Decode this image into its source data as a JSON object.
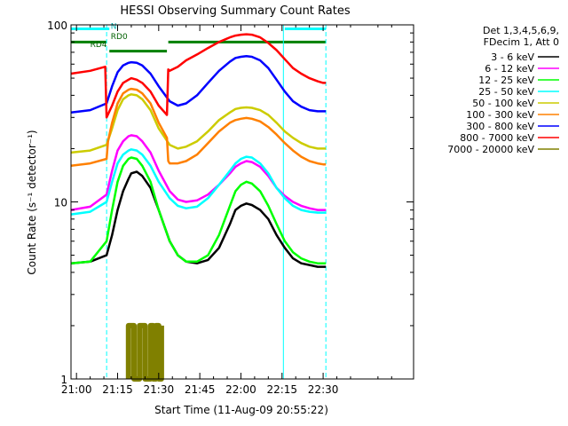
{
  "chart_data": {
    "type": "line",
    "title": "HESSI Observing Summary Count Rates",
    "xlabel": "Start Time (11-Aug-09 20:55:22)",
    "ylabel": "Count Rate (s⁻¹ detector⁻¹)",
    "x_range_minutes": [
      -2,
      123
    ],
    "yscale": "log",
    "ylim": [
      1,
      100
    ],
    "x_ticks": [
      {
        "t": 0,
        "label": "21:00"
      },
      {
        "t": 15,
        "label": "21:15"
      },
      {
        "t": 30,
        "label": "21:30"
      },
      {
        "t": 45,
        "label": "21:45"
      },
      {
        "t": 60,
        "label": "22:00"
      },
      {
        "t": 75,
        "label": "22:15"
      },
      {
        "t": 90,
        "label": "22:30"
      }
    ],
    "y_major_ticks": [
      {
        "v": 1,
        "label": "1"
      },
      {
        "v": 10,
        "label": "10"
      },
      {
        "v": 100,
        "label": "100"
      }
    ],
    "legend_position": "right",
    "legend_header": [
      "Det 1,3,4,5,6,9,",
      "FDecim 1, Att 0"
    ],
    "series": [
      {
        "name": "3 - 6 keV",
        "color": "#000000",
        "x": [
          -2,
          5,
          11,
          13,
          15,
          17,
          19,
          20,
          22,
          24,
          27,
          30,
          34,
          37,
          40,
          44,
          48,
          52,
          56,
          58,
          60,
          62,
          64,
          67,
          70,
          73,
          76,
          79,
          82,
          85,
          88,
          90,
          91
        ],
        "y": [
          4.5,
          4.6,
          5.0,
          6.5,
          9.0,
          11.5,
          13.5,
          14.5,
          14.8,
          14.0,
          12.0,
          9.0,
          6.0,
          5.0,
          4.6,
          4.5,
          4.7,
          5.5,
          7.5,
          9.0,
          9.5,
          9.8,
          9.6,
          9.0,
          8.0,
          6.5,
          5.5,
          4.8,
          4.5,
          4.4,
          4.3,
          4.3,
          4.3
        ]
      },
      {
        "name": "6 - 12 keV",
        "color": "#ff00ff",
        "x": [
          -2,
          5,
          11,
          13,
          15,
          17,
          19,
          20,
          22,
          24,
          27,
          30,
          34,
          37,
          40,
          44,
          48,
          52,
          56,
          58,
          60,
          62,
          64,
          67,
          70,
          73,
          76,
          79,
          82,
          85,
          88,
          90,
          91
        ],
        "y": [
          9.0,
          9.4,
          11.0,
          15.0,
          19.5,
          22.0,
          23.5,
          23.8,
          23.5,
          22.0,
          19.0,
          15.0,
          11.5,
          10.3,
          10.0,
          10.2,
          11.0,
          12.5,
          14.5,
          15.8,
          16.5,
          17.0,
          16.8,
          15.8,
          14.0,
          12.0,
          10.8,
          10.0,
          9.5,
          9.2,
          9.0,
          9.0,
          9.0
        ]
      },
      {
        "name": "12 - 25 keV",
        "color": "#00ff00",
        "x": [
          -2,
          5,
          11,
          13,
          15,
          17,
          19,
          20,
          22,
          24,
          27,
          30,
          34,
          37,
          40,
          44,
          48,
          52,
          56,
          58,
          60,
          62,
          64,
          67,
          70,
          73,
          76,
          79,
          82,
          85,
          88,
          90,
          91
        ],
        "y": [
          4.5,
          4.6,
          6.0,
          9.0,
          13.0,
          16.0,
          17.5,
          17.8,
          17.5,
          16.0,
          13.0,
          9.0,
          6.0,
          5.0,
          4.6,
          4.6,
          5.0,
          6.5,
          9.5,
          11.5,
          12.5,
          13.0,
          12.7,
          11.5,
          9.5,
          7.5,
          6.0,
          5.2,
          4.8,
          4.6,
          4.5,
          4.5,
          4.5
        ]
      },
      {
        "name": "25 - 50 keV",
        "color": "#00ffff",
        "x": [
          -2,
          5,
          11,
          13,
          15,
          17,
          19,
          20,
          22,
          24,
          27,
          30,
          34,
          37,
          40,
          44,
          48,
          52,
          56,
          58,
          60,
          62,
          64,
          67,
          70,
          73,
          76,
          79,
          82,
          85,
          88,
          90,
          91
        ],
        "y": [
          8.5,
          8.8,
          10.0,
          13.0,
          16.5,
          18.5,
          19.5,
          19.8,
          19.5,
          18.5,
          16.0,
          13.0,
          10.5,
          9.5,
          9.2,
          9.4,
          10.5,
          12.5,
          15.0,
          16.5,
          17.5,
          18.0,
          17.8,
          16.5,
          14.5,
          12.0,
          10.5,
          9.5,
          9.0,
          8.8,
          8.7,
          8.7,
          8.7
        ]
      },
      {
        "name": "50 - 100 keV",
        "color": "#cccc00",
        "x": [
          -2,
          5,
          11,
          13,
          15,
          17,
          19,
          20,
          22,
          24,
          27,
          30,
          34,
          37,
          40,
          44,
          48,
          52,
          56,
          58,
          60,
          62,
          64,
          67,
          70,
          73,
          76,
          79,
          82,
          85,
          88,
          90,
          91
        ],
        "y": [
          19.0,
          19.5,
          21.0,
          26.0,
          33.0,
          38.0,
          40.0,
          40.5,
          40.0,
          38.0,
          33.0,
          26.0,
          21.0,
          20.0,
          20.5,
          22.0,
          25.0,
          29.0,
          32.0,
          33.5,
          34.0,
          34.2,
          34.0,
          33.0,
          31.0,
          28.0,
          25.0,
          23.0,
          21.5,
          20.5,
          20.0,
          20.0,
          20.0
        ]
      },
      {
        "name": "100 - 300 keV",
        "color": "#ff8000",
        "x": [
          -2,
          5,
          11,
          11.5,
          13,
          15,
          17,
          19,
          20,
          22,
          24,
          27,
          30,
          33,
          33.5,
          34,
          37,
          40,
          44,
          48,
          52,
          56,
          58,
          60,
          62,
          64,
          67,
          70,
          73,
          76,
          79,
          82,
          85,
          88,
          90,
          91
        ],
        "y": [
          16.0,
          16.5,
          17.5,
          22.0,
          28.0,
          36.0,
          41.0,
          43.0,
          43.5,
          43.0,
          41.0,
          36.0,
          28.0,
          23.0,
          17.0,
          16.5,
          16.5,
          17.0,
          18.5,
          21.5,
          25.0,
          28.0,
          29.0,
          29.5,
          29.8,
          29.5,
          28.5,
          26.5,
          24.0,
          21.5,
          19.5,
          18.0,
          17.0,
          16.5,
          16.3,
          16.3
        ]
      },
      {
        "name": "300 - 800 keV",
        "color": "#0000ff",
        "x": [
          -2,
          5,
          11,
          13,
          15,
          17,
          19,
          20,
          22,
          24,
          27,
          30,
          34,
          37,
          40,
          44,
          48,
          52,
          56,
          58,
          60,
          62,
          64,
          67,
          70,
          73,
          76,
          79,
          82,
          85,
          88,
          90,
          91
        ],
        "y": [
          32.0,
          33.0,
          36.0,
          45.0,
          54.0,
          59.0,
          61.0,
          61.5,
          61.0,
          59.0,
          53.0,
          45.0,
          37.0,
          35.0,
          36.0,
          40.0,
          47.0,
          55.0,
          62.0,
          65.0,
          66.0,
          66.5,
          66.0,
          63.0,
          57.0,
          49.0,
          42.0,
          37.0,
          34.5,
          33.0,
          32.5,
          32.5,
          32.5
        ]
      },
      {
        "name": "800 - 7000 keV",
        "color": "#ff0000",
        "x": [
          -2,
          5,
          10.5,
          11,
          13,
          15,
          17,
          19,
          20,
          22,
          24,
          27,
          30,
          33,
          33.5,
          34,
          37,
          40,
          44,
          48,
          52,
          56,
          58,
          60,
          62,
          64,
          67,
          70,
          73,
          76,
          79,
          82,
          85,
          88,
          90,
          91
        ],
        "y": [
          53.0,
          55.0,
          58.0,
          30.0,
          35.0,
          42.0,
          47.0,
          49.0,
          50.0,
          49.0,
          47.0,
          42.0,
          35.0,
          31.0,
          56.0,
          55.0,
          58.0,
          63.0,
          68.0,
          74.0,
          80.0,
          85.0,
          87.0,
          88.0,
          88.5,
          88.0,
          85.0,
          79.0,
          72.0,
          64.0,
          57.0,
          53.0,
          50.0,
          48.0,
          47.0,
          47.0
        ]
      },
      {
        "name": "7000 - 20000 keV",
        "color": "#808000",
        "x": [
          19,
          19,
          21,
          21,
          23,
          23,
          25,
          25,
          27,
          27,
          28,
          28,
          29,
          29,
          30,
          30,
          31,
          31
        ],
        "y": [
          1.0,
          2.0,
          2.0,
          1.0,
          1.0,
          2.0,
          2.0,
          1.0,
          1.0,
          2.0,
          2.0,
          1.0,
          1.0,
          2.0,
          2.0,
          1.0,
          1.0,
          2.0
        ]
      }
    ],
    "annotations": [
      {
        "text": "N",
        "color": "#00b0b0",
        "t": 12.5,
        "v": 95
      },
      {
        "text": "RD0",
        "color": "#006000",
        "t": 12.5,
        "v": 83
      },
      {
        "text": "RD4",
        "color": "#006000",
        "t": 5.0,
        "v": 75
      }
    ]
  }
}
